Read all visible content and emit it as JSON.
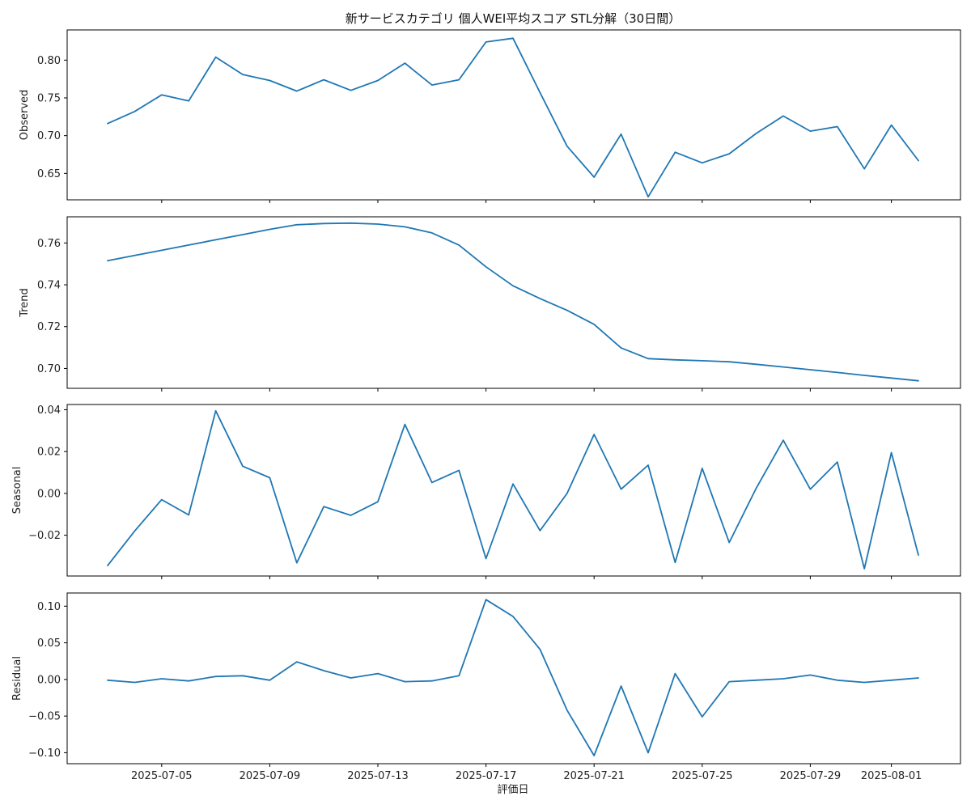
{
  "chart_data": {
    "type": "line",
    "title": "新サービスカテゴリ 個人WEI平均スコア STL分解（30日間）",
    "xlabel": "評価日",
    "x": [
      "2025-07-03",
      "2025-07-04",
      "2025-07-05",
      "2025-07-06",
      "2025-07-07",
      "2025-07-08",
      "2025-07-09",
      "2025-07-10",
      "2025-07-11",
      "2025-07-12",
      "2025-07-13",
      "2025-07-14",
      "2025-07-15",
      "2025-07-16",
      "2025-07-17",
      "2025-07-18",
      "2025-07-19",
      "2025-07-20",
      "2025-07-21",
      "2025-07-22",
      "2025-07-23",
      "2025-07-24",
      "2025-07-25",
      "2025-07-26",
      "2025-07-27",
      "2025-07-28",
      "2025-07-29",
      "2025-07-30",
      "2025-07-31",
      "2025-08-01",
      "2025-08-02"
    ],
    "x_ticks": [
      "2025-07-05",
      "2025-07-09",
      "2025-07-13",
      "2025-07-17",
      "2025-07-21",
      "2025-07-25",
      "2025-07-29",
      "2025-08-01"
    ],
    "line_color": "#1f77b4",
    "panels": [
      {
        "ylabel": "Observed",
        "ylim": [
          0.615,
          0.84
        ],
        "yticks": [
          "0.65",
          "0.70",
          "0.75",
          "0.80"
        ],
        "values": [
          0.716,
          0.732,
          0.754,
          0.746,
          0.804,
          0.781,
          0.773,
          0.759,
          0.774,
          0.76,
          0.773,
          0.796,
          0.767,
          0.774,
          0.824,
          0.829,
          0.757,
          0.686,
          0.645,
          0.702,
          0.619,
          0.678,
          0.664,
          0.676,
          0.703,
          0.726,
          0.706,
          0.712,
          0.656,
          0.714,
          0.667
        ]
      },
      {
        "ylabel": "Trend",
        "ylim": [
          0.6905,
          0.7725
        ],
        "yticks": [
          "0.70",
          "0.72",
          "0.74",
          "0.76"
        ],
        "values": [
          0.7515,
          0.754,
          0.7565,
          0.759,
          0.7615,
          0.764,
          0.7665,
          0.7687,
          0.7693,
          0.7695,
          0.769,
          0.7677,
          0.7648,
          0.759,
          0.7486,
          0.7395,
          0.7334,
          0.7278,
          0.7211,
          0.7098,
          0.7047,
          0.7041,
          0.7037,
          0.7032,
          0.702,
          0.7007,
          0.6994,
          0.6981,
          0.6967,
          0.6954,
          0.6941
        ]
      },
      {
        "ylabel": "Seasonal",
        "ylim": [
          -0.0395,
          0.0425
        ],
        "yticks": [
          "−0.02",
          "0.00",
          "0.02",
          "0.04"
        ],
        "values": [
          -0.0345,
          -0.018,
          -0.003,
          -0.0103,
          0.0395,
          0.013,
          0.0075,
          -0.0332,
          -0.0063,
          -0.0105,
          -0.004,
          0.033,
          0.0052,
          0.011,
          -0.0312,
          0.0045,
          -0.0178,
          0.0,
          0.0282,
          0.002,
          0.0135,
          -0.033,
          0.012,
          -0.0235,
          0.0025,
          0.0254,
          0.002,
          0.015,
          -0.036,
          0.0195,
          -0.0295
        ]
      },
      {
        "ylabel": "Residual",
        "ylim": [
          -0.115,
          0.118
        ],
        "yticks": [
          "−0.10",
          "−0.05",
          "0.00",
          "0.05",
          "0.10"
        ],
        "values": [
          -0.001,
          -0.004,
          0.001,
          -0.002,
          0.004,
          0.005,
          -0.001,
          0.024,
          0.012,
          0.002,
          0.008,
          -0.003,
          -0.002,
          0.005,
          0.109,
          0.086,
          0.041,
          -0.042,
          -0.104,
          -0.009,
          -0.1,
          0.008,
          -0.051,
          -0.003,
          -0.001,
          0.001,
          0.006,
          -0.001,
          -0.004,
          -0.001,
          0.002
        ]
      }
    ]
  }
}
